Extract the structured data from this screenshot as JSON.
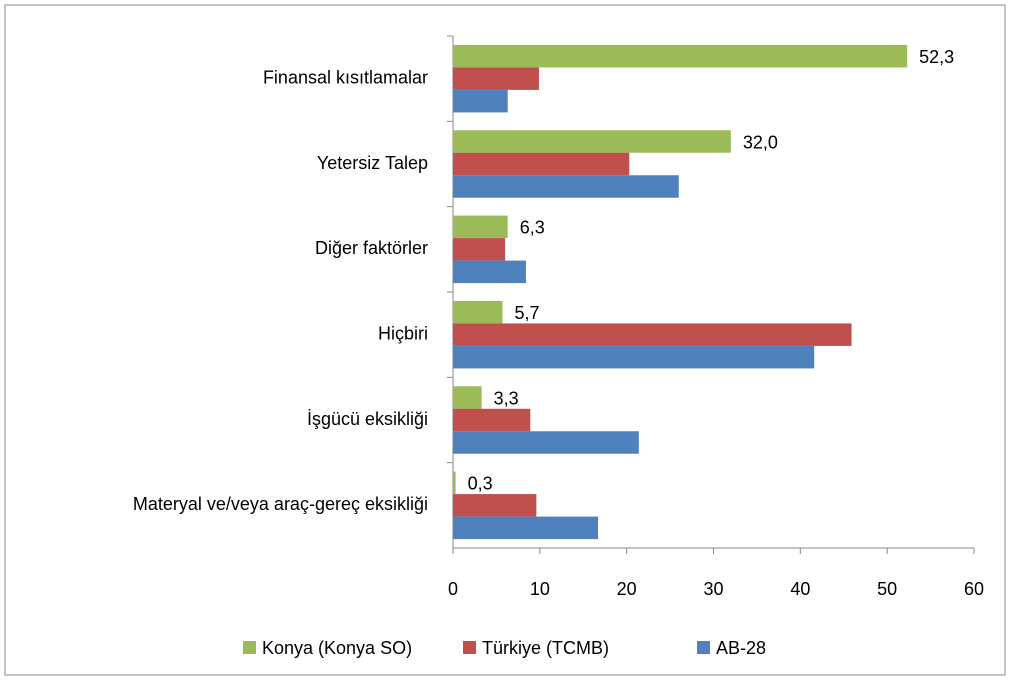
{
  "chart_data": {
    "type": "bar",
    "orientation": "horizontal",
    "categories": [
      "Finansal kısıtlamalar",
      "Yetersiz Talep",
      "Diğer faktörler",
      "Hiçbiri",
      "İşgücü eksikliği",
      "Materyal ve/veya araç-gereç eksikliği"
    ],
    "series": [
      {
        "name": "Konya (Konya SO)",
        "color": "#9bbb59",
        "values": [
          52.3,
          32.0,
          6.3,
          5.7,
          3.3,
          0.3
        ],
        "value_labels": [
          "52,3",
          "32,0",
          "6,3",
          "5,7",
          "3,3",
          "0,3"
        ]
      },
      {
        "name": "Türkiye (TCMB)",
        "color": "#c0504d",
        "values": [
          9.9,
          20.3,
          6.0,
          45.9,
          8.9,
          9.6
        ]
      },
      {
        "name": "AB-28",
        "color": "#4f81bd",
        "values": [
          6.3,
          26.0,
          8.4,
          41.6,
          21.4,
          16.7
        ]
      }
    ],
    "xlim": [
      0,
      60
    ],
    "xticks": [
      0,
      10,
      20,
      30,
      40,
      50,
      60
    ],
    "legend": "bottom"
  }
}
